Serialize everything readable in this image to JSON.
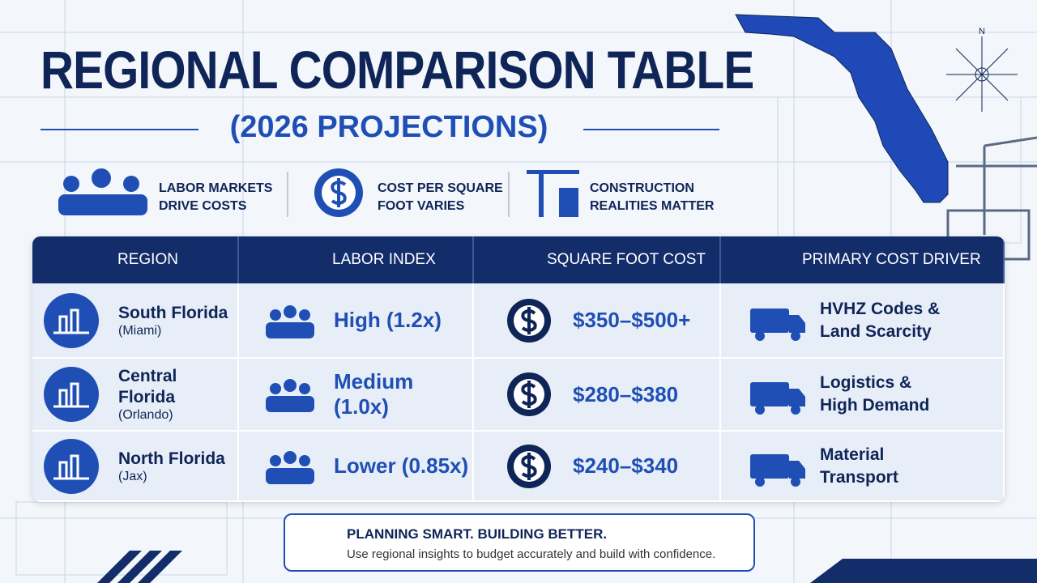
{
  "header": {
    "title": "REGIONAL COMPARISON TABLE",
    "subtitle": "(2026 PROJECTIONS)",
    "compass": "N"
  },
  "highlights": [
    {
      "lines": [
        "LABOR MARKETS",
        "DRIVE COSTS"
      ]
    },
    {
      "lines": [
        "COST PER SQUARE",
        "FOOT VARIES"
      ]
    },
    {
      "lines": [
        "CONSTRUCTION",
        "REALITIES MATTER"
      ]
    }
  ],
  "table": {
    "headers": [
      "REGION",
      "LABOR INDEX",
      "SQUARE FOOT COST",
      "PRIMARY COST DRIVER"
    ],
    "rows": [
      {
        "region": "South Florida",
        "area": "(Miami)",
        "labor": "High (1.2x)",
        "cost": "$350–$500+",
        "driver": [
          "HVHZ Codes &",
          "Land Scarcity"
        ]
      },
      {
        "region": "Central Florida",
        "area": "(Orlando)",
        "labor": "Medium (1.0x)",
        "cost": "$280–$380",
        "driver": [
          "Logistics &",
          "High Demand"
        ]
      },
      {
        "region": "North Florida",
        "area": "(Jax)",
        "labor": "Lower (0.85x)",
        "cost": "$240–$340",
        "driver": [
          "Material",
          "Transport"
        ]
      }
    ]
  },
  "footer": {
    "title": "PLANNING SMART. BUILDING BETTER.",
    "text": "Use regional insights to budget accurately and build with confidence."
  }
}
